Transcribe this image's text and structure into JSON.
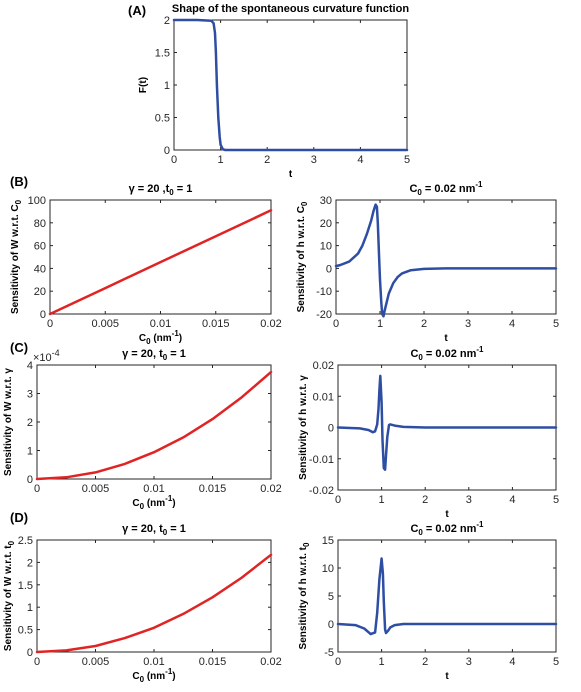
{
  "chart_data": [
    {
      "id": "A",
      "panel_label": "(A)",
      "type": "line",
      "title": "Shape of the spontaneous curvature function",
      "xlabel": "t",
      "ylabel": "F(t)",
      "xlim": [
        0,
        5
      ],
      "ylim": [
        0,
        2
      ],
      "xticks": [
        0,
        1,
        2,
        3,
        4,
        5
      ],
      "yticks": [
        0,
        0.5,
        1,
        1.5,
        2
      ],
      "xtick_labels": [
        "0",
        "1",
        "2",
        "3",
        "4",
        "5"
      ],
      "ytick_labels": [
        "0",
        "0.5",
        "1",
        "1.5",
        "2"
      ],
      "series": [
        {
          "color": "#2e4ea3",
          "x": [
            0,
            0.5,
            0.8,
            0.85,
            0.88,
            0.9,
            0.92,
            0.95,
            0.98,
            1.0,
            1.05,
            1.1,
            2,
            3,
            4,
            5
          ],
          "y": [
            2,
            2,
            1.99,
            1.95,
            1.8,
            1.5,
            1.0,
            0.5,
            0.2,
            0.08,
            0.01,
            0,
            0,
            0,
            0,
            0
          ]
        }
      ]
    },
    {
      "id": "B1",
      "panel_label": "(B)",
      "type": "line",
      "title": "γ = 20 ,t",
      "title_sub": "0",
      "title_tail": " = 1",
      "xlabel": "C",
      "xlabel_sub": "0",
      "xlabel_tail": " (nm",
      "xlabel_sup": "-1",
      "xlabel_end": ")",
      "ylabel": "Sensitivity of W  w.r.t. C",
      "ylabel_sub": "0",
      "xlim": [
        0,
        0.02
      ],
      "ylim": [
        0,
        100
      ],
      "xticks": [
        0,
        0.005,
        0.01,
        0.015,
        0.02
      ],
      "yticks": [
        0,
        20,
        40,
        60,
        80,
        100
      ],
      "xtick_labels": [
        "0",
        "0.005",
        "0.01",
        "0.015",
        "0.02"
      ],
      "ytick_labels": [
        "0",
        "20",
        "40",
        "60",
        "80",
        "100"
      ],
      "series": [
        {
          "color": "#e02424",
          "x": [
            0,
            0.005,
            0.01,
            0.015,
            0.02
          ],
          "y": [
            0,
            22.7,
            45.5,
            68.2,
            91
          ]
        }
      ]
    },
    {
      "id": "B2",
      "type": "line",
      "title": "C",
      "title_sub": "0",
      "title_tail": " = 0.02 nm",
      "title_sup": "-1",
      "xlabel": "t",
      "ylabel": "Sensitivity of h  w.r.t. C",
      "ylabel_sub": "0",
      "xlim": [
        0,
        5
      ],
      "ylim": [
        -20,
        30
      ],
      "xticks": [
        0,
        1,
        2,
        3,
        4,
        5
      ],
      "yticks": [
        -20,
        -10,
        0,
        10,
        20,
        30
      ],
      "xtick_labels": [
        "0",
        "1",
        "2",
        "3",
        "4",
        "5"
      ],
      "ytick_labels": [
        "-20",
        "-10",
        "0",
        "10",
        "20",
        "30"
      ],
      "series": [
        {
          "color": "#2e4ea3",
          "x": [
            0,
            0.1,
            0.3,
            0.5,
            0.6,
            0.7,
            0.8,
            0.85,
            0.9,
            0.93,
            0.95,
            0.98,
            1.0,
            1.03,
            1.05,
            1.08,
            1.1,
            1.15,
            1.2,
            1.3,
            1.4,
            1.5,
            1.7,
            2.0,
            2.5,
            3,
            4,
            5
          ],
          "y": [
            1,
            1.5,
            3,
            6.5,
            10,
            15,
            21,
            25,
            28,
            27,
            20,
            5,
            -5,
            -15,
            -20,
            -21,
            -19,
            -15,
            -11,
            -6.5,
            -3.8,
            -2.2,
            -0.8,
            -0.2,
            0,
            0,
            0,
            0
          ]
        }
      ]
    },
    {
      "id": "C1",
      "panel_label": "(C)",
      "type": "line",
      "title": "γ  = 20, t",
      "title_sub": "0",
      "title_tail": " = 1",
      "xlabel": "C",
      "xlabel_sub": "0",
      "xlabel_tail": " (nm",
      "xlabel_sup": "-1",
      "xlabel_end": ")",
      "ylabel": "Sensitivity of W  w.r.t. γ",
      "y_exponent": "×10",
      "y_exponent_sup": "-4",
      "xlim": [
        0,
        0.02
      ],
      "ylim": [
        0,
        4
      ],
      "xticks": [
        0,
        0.005,
        0.01,
        0.015,
        0.02
      ],
      "yticks": [
        0,
        1,
        2,
        3,
        4
      ],
      "xtick_labels": [
        "0",
        "0.005",
        "0.01",
        "0.015",
        "0.02"
      ],
      "ytick_labels": [
        "0",
        "1",
        "2",
        "3",
        "4"
      ],
      "series": [
        {
          "color": "#e02424",
          "x": [
            0,
            0.0025,
            0.005,
            0.0075,
            0.01,
            0.0125,
            0.015,
            0.0175,
            0.02
          ],
          "y": [
            0,
            0.06,
            0.23,
            0.53,
            0.94,
            1.46,
            2.1,
            2.87,
            3.75
          ]
        }
      ]
    },
    {
      "id": "C2",
      "type": "line",
      "title": "C",
      "title_sub": "0",
      "title_tail": " = 0.02 nm",
      "title_sup": "-1",
      "xlabel": "t",
      "ylabel": "Sensitivity of h  w.r.t. γ",
      "xlim": [
        0,
        5
      ],
      "ylim": [
        -0.02,
        0.02
      ],
      "xticks": [
        0,
        1,
        2,
        3,
        4,
        5
      ],
      "yticks": [
        -0.02,
        -0.01,
        0,
        0.01,
        0.02
      ],
      "xtick_labels": [
        "0",
        "1",
        "2",
        "3",
        "4",
        "5"
      ],
      "ytick_labels": [
        "-0.02",
        "-0.01",
        "0",
        "0.01",
        "0.02"
      ],
      "series": [
        {
          "color": "#2e4ea3",
          "x": [
            0,
            0.5,
            0.7,
            0.8,
            0.85,
            0.9,
            0.93,
            0.95,
            0.97,
            1.0,
            1.02,
            1.05,
            1.08,
            1.1,
            1.13,
            1.17,
            1.2,
            1.3,
            1.5,
            2,
            3,
            4,
            5
          ],
          "y": [
            0,
            -0.0003,
            -0.0008,
            -0.0015,
            -0.0012,
            0.001,
            0.006,
            0.012,
            0.0165,
            0.008,
            -0.004,
            -0.013,
            -0.0135,
            -0.009,
            -0.003,
            0.0008,
            0.001,
            0.0006,
            0.0002,
            0,
            0,
            0,
            0
          ]
        }
      ]
    },
    {
      "id": "D1",
      "panel_label": "(D)",
      "type": "line",
      "title": "γ  = 20, t",
      "title_sub": "0",
      "title_tail": " = 1",
      "xlabel": "C",
      "xlabel_sub": "0",
      "xlabel_tail": " (nm",
      "xlabel_sup": "-1",
      "xlabel_end": ")",
      "ylabel": "Sensitivity of W  w.r.t. t",
      "ylabel_sub": "0",
      "xlim": [
        0,
        0.02
      ],
      "ylim": [
        0,
        2.5
      ],
      "xticks": [
        0,
        0.005,
        0.01,
        0.015,
        0.02
      ],
      "yticks": [
        0,
        0.5,
        1,
        1.5,
        2,
        2.5
      ],
      "xtick_labels": [
        "0",
        "0.005",
        "0.01",
        "0.015",
        "0.02"
      ],
      "ytick_labels": [
        "0",
        "0.5",
        "1",
        "1.5",
        "2",
        "2.5"
      ],
      "series": [
        {
          "color": "#e02424",
          "x": [
            0,
            0.0025,
            0.005,
            0.0075,
            0.01,
            0.0125,
            0.015,
            0.0175,
            0.02
          ],
          "y": [
            0,
            0.035,
            0.135,
            0.31,
            0.54,
            0.85,
            1.22,
            1.66,
            2.17
          ]
        }
      ]
    },
    {
      "id": "D2",
      "type": "line",
      "title": "C",
      "title_sub": "0",
      "title_tail": " = 0.02 nm",
      "title_sup": "-1",
      "xlabel": "t",
      "ylabel": "Sensitivity of h  w.r.t. t",
      "ylabel_sub": "0",
      "xlim": [
        0,
        5
      ],
      "ylim": [
        -5,
        15
      ],
      "xticks": [
        0,
        1,
        2,
        3,
        4,
        5
      ],
      "yticks": [
        -5,
        0,
        5,
        10,
        15
      ],
      "xtick_labels": [
        "0",
        "1",
        "2",
        "3",
        "4",
        "5"
      ],
      "ytick_labels": [
        "-5",
        "0",
        "5",
        "10",
        "15"
      ],
      "series": [
        {
          "color": "#2e4ea3",
          "x": [
            0,
            0.4,
            0.6,
            0.75,
            0.85,
            0.9,
            0.95,
            1.0,
            1.03,
            1.05,
            1.08,
            1.1,
            1.15,
            1.2,
            1.3,
            1.5,
            2,
            3,
            4,
            5
          ],
          "y": [
            0,
            -0.2,
            -0.8,
            -1.8,
            -1.5,
            2,
            8,
            11.7,
            9,
            4,
            -1,
            -1.6,
            -1.2,
            -0.6,
            -0.2,
            0,
            0,
            0,
            0,
            0
          ]
        }
      ]
    }
  ]
}
